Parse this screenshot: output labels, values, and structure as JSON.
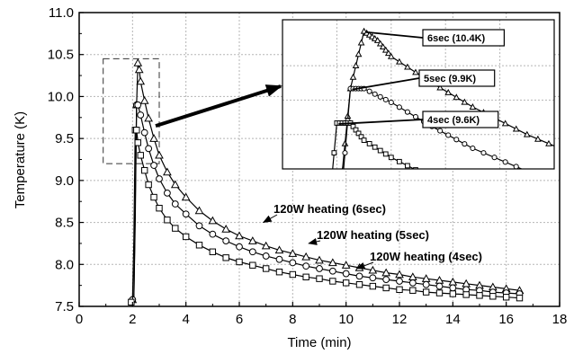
{
  "chart_data": {
    "type": "line",
    "title": "",
    "xlabel": "Time (min)",
    "ylabel": "Temperature (K)",
    "xlim": [
      0,
      18
    ],
    "ylim": [
      7.5,
      11.0
    ],
    "x_ticks": [
      "0",
      "2",
      "4",
      "6",
      "8",
      "10",
      "12",
      "14",
      "16",
      "18"
    ],
    "y_ticks": [
      "7.5",
      "8.0",
      "8.5",
      "9.0",
      "9.5",
      "10.0",
      "10.5",
      "11.0"
    ],
    "grid": true,
    "series": [
      {
        "name": "120W heating (6sec)",
        "marker": "triangle",
        "peak": 10.4,
        "x": [
          2.0,
          2.05,
          2.1,
          2.15,
          2.2,
          2.25,
          2.3,
          2.45,
          2.6,
          2.8,
          3.0,
          3.3,
          3.6,
          4.0,
          4.5,
          5.0,
          5.5,
          6.0,
          6.5,
          7.0,
          7.5,
          8.0,
          8.5,
          9.0,
          9.5,
          10.0,
          10.5,
          11.0,
          11.5,
          12.0,
          12.5,
          13.0,
          13.5,
          14.0,
          14.5,
          15.0,
          15.5,
          16.0,
          16.5
        ],
        "y": [
          7.58,
          7.6,
          8.7,
          9.9,
          10.4,
          10.32,
          10.18,
          9.95,
          9.74,
          9.5,
          9.3,
          9.1,
          8.95,
          8.8,
          8.64,
          8.52,
          8.42,
          8.34,
          8.28,
          8.22,
          8.17,
          8.13,
          8.09,
          8.05,
          8.02,
          7.99,
          7.96,
          7.93,
          7.9,
          7.88,
          7.85,
          7.83,
          7.81,
          7.79,
          7.77,
          7.75,
          7.73,
          7.71,
          7.69
        ]
      },
      {
        "name": "120W heating (5sec)",
        "marker": "circle",
        "peak": 9.9,
        "x": [
          2.0,
          2.05,
          2.1,
          2.15,
          2.2,
          2.3,
          2.45,
          2.6,
          2.8,
          3.0,
          3.3,
          3.6,
          4.0,
          4.5,
          5.0,
          5.5,
          6.0,
          6.5,
          7.0,
          7.5,
          8.0,
          8.5,
          9.0,
          9.5,
          10.0,
          10.5,
          11.0,
          11.5,
          12.0,
          12.5,
          13.0,
          13.5,
          14.0,
          14.5,
          15.0,
          15.5,
          16.0,
          16.5
        ],
        "y": [
          7.58,
          7.6,
          8.5,
          9.9,
          9.9,
          9.78,
          9.57,
          9.38,
          9.18,
          9.02,
          8.85,
          8.72,
          8.6,
          8.46,
          8.36,
          8.28,
          8.21,
          8.15,
          8.1,
          8.06,
          8.02,
          7.98,
          7.95,
          7.92,
          7.89,
          7.86,
          7.84,
          7.82,
          7.8,
          7.78,
          7.76,
          7.74,
          7.72,
          7.7,
          7.69,
          7.67,
          7.66,
          7.65
        ]
      },
      {
        "name": "120W heating (4sec)",
        "marker": "square",
        "peak": 9.6,
        "x": [
          1.95,
          2.0,
          2.05,
          2.1,
          2.15,
          2.2,
          2.3,
          2.45,
          2.6,
          2.8,
          3.0,
          3.3,
          3.6,
          4.0,
          4.5,
          5.0,
          5.5,
          6.0,
          6.5,
          7.0,
          7.5,
          8.0,
          8.5,
          9.0,
          9.5,
          10.0,
          10.5,
          11.0,
          11.5,
          12.0,
          12.5,
          13.0,
          13.5,
          14.0,
          14.5,
          15.0,
          15.5,
          16.0,
          16.5
        ],
        "y": [
          7.55,
          7.58,
          8.3,
          9.6,
          9.6,
          9.45,
          9.3,
          9.12,
          8.95,
          8.8,
          8.67,
          8.53,
          8.43,
          8.33,
          8.23,
          8.15,
          8.08,
          8.03,
          7.99,
          7.95,
          7.91,
          7.88,
          7.85,
          7.83,
          7.8,
          7.78,
          7.76,
          7.74,
          7.72,
          7.7,
          7.69,
          7.67,
          7.66,
          7.65,
          7.64,
          7.63,
          7.62,
          7.61,
          7.6
        ]
      }
    ],
    "annotations": [
      {
        "text": "120W heating (6sec)",
        "target": [
          6.9,
          8.5
        ],
        "series": 0
      },
      {
        "text": "120W heating (5sec)",
        "target": [
          8.6,
          8.25
        ],
        "series": 1
      },
      {
        "text": "120W heating (4sec)",
        "target": [
          10.4,
          7.95
        ],
        "series": 2
      }
    ],
    "zoom_region": {
      "x": [
        0.9,
        3.0
      ],
      "y": [
        9.2,
        10.45
      ]
    },
    "inset": {
      "xlim": [
        1.9,
        2.9
      ],
      "ylim": [
        9.2,
        10.5
      ],
      "labels": [
        {
          "text": "6sec (10.4K)",
          "series": 0
        },
        {
          "text": "5sec (9.9K)",
          "series": 1
        },
        {
          "text": "4sec (9.6K)",
          "series": 2
        }
      ]
    }
  }
}
